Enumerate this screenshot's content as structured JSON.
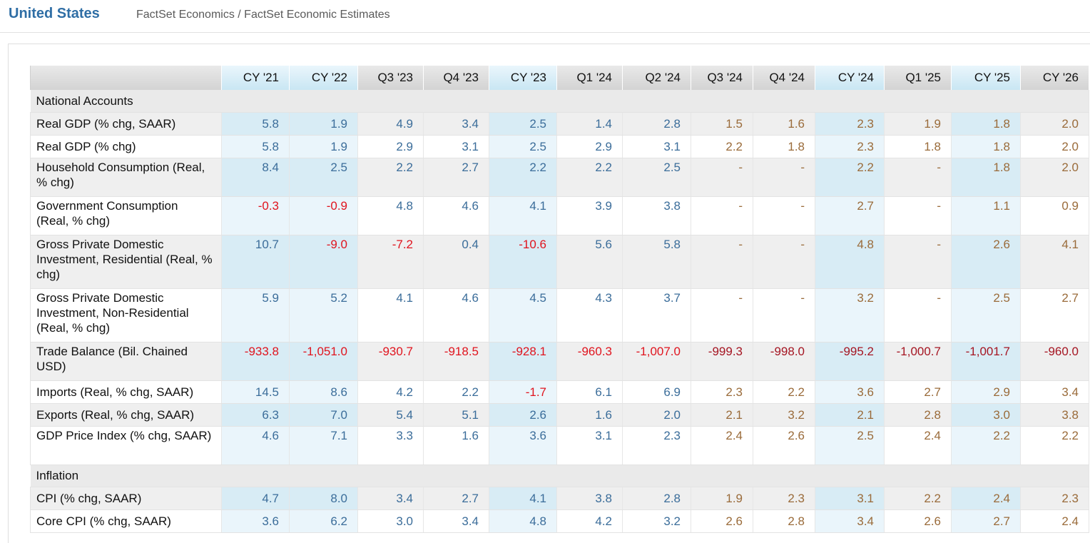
{
  "header": {
    "country": "United States",
    "source": "FactSet Economics / FactSet Economic Estimates"
  },
  "table": {
    "columns": [
      "CY '21",
      "CY '22",
      "Q3 '23",
      "Q4 '23",
      "CY '23",
      "Q1 '24",
      "Q2 '24",
      "Q3 '24",
      "Q4 '24",
      "CY '24",
      "Q1 '25",
      "CY '25",
      "CY '26"
    ],
    "cy_columns": [
      0,
      1,
      4,
      9,
      11
    ],
    "estimate_start_index": 7,
    "sections": [
      {
        "title": "National Accounts",
        "rows": [
          {
            "label": "Real GDP (% chg, SAAR)",
            "values": [
              "5.8",
              "1.9",
              "4.9",
              "3.4",
              "2.5",
              "1.4",
              "2.8",
              "1.5",
              "1.6",
              "2.3",
              "1.9",
              "1.8",
              "2.0"
            ]
          },
          {
            "label": "Real GDP (% chg)",
            "values": [
              "5.8",
              "1.9",
              "2.9",
              "3.1",
              "2.5",
              "2.9",
              "3.1",
              "2.2",
              "1.8",
              "2.3",
              "1.8",
              "1.8",
              "2.0"
            ]
          },
          {
            "label": "Household Consumption (Real, % chg)",
            "values": [
              "8.4",
              "2.5",
              "2.2",
              "2.7",
              "2.2",
              "2.2",
              "2.5",
              "-",
              "-",
              "2.2",
              "-",
              "1.8",
              "2.0"
            ]
          },
          {
            "label": "Government Consumption (Real, % chg)",
            "values": [
              "-0.3",
              "-0.9",
              "4.8",
              "4.6",
              "4.1",
              "3.9",
              "3.8",
              "-",
              "-",
              "2.7",
              "-",
              "1.1",
              "0.9"
            ]
          },
          {
            "label": "Gross Private Domestic Investment, Residential (Real, % chg)",
            "values": [
              "10.7",
              "-9.0",
              "-7.2",
              "0.4",
              "-10.6",
              "5.6",
              "5.8",
              "-",
              "-",
              "4.8",
              "-",
              "2.6",
              "4.1"
            ]
          },
          {
            "label": "Gross Private Domestic Investment, Non-Residential (Real, % chg)",
            "values": [
              "5.9",
              "5.2",
              "4.1",
              "4.6",
              "4.5",
              "4.3",
              "3.7",
              "-",
              "-",
              "3.2",
              "-",
              "2.5",
              "2.7"
            ]
          },
          {
            "label": "Trade Balance (Bil. Chained USD)",
            "values": [
              "-933.8",
              "-1,051.0",
              "-930.7",
              "-918.5",
              "-928.1",
              "-960.3",
              "-1,007.0",
              "-999.3",
              "-998.0",
              "-995.2",
              "-1,000.7",
              "-1,001.7",
              "-960.0"
            ]
          },
          {
            "label": "Imports (Real, % chg, SAAR)",
            "values": [
              "14.5",
              "8.6",
              "4.2",
              "2.2",
              "-1.7",
              "6.1",
              "6.9",
              "2.3",
              "2.2",
              "3.6",
              "2.7",
              "2.9",
              "3.4"
            ]
          },
          {
            "label": "Exports (Real, % chg, SAAR)",
            "values": [
              "6.3",
              "7.0",
              "5.4",
              "5.1",
              "2.6",
              "1.6",
              "2.0",
              "2.1",
              "3.2",
              "2.1",
              "2.8",
              "3.0",
              "3.8"
            ]
          },
          {
            "label": "GDP Price Index (% chg, SAAR)",
            "values": [
              "4.6",
              "7.1",
              "3.3",
              "1.6",
              "3.6",
              "3.1",
              "2.3",
              "2.4",
              "2.6",
              "2.5",
              "2.4",
              "2.2",
              "2.2"
            ]
          }
        ]
      },
      {
        "title": "Inflation",
        "rows": [
          {
            "label": "CPI (% chg, SAAR)",
            "values": [
              "4.7",
              "8.0",
              "3.4",
              "2.7",
              "4.1",
              "3.8",
              "2.8",
              "1.9",
              "2.3",
              "3.1",
              "2.2",
              "2.4",
              "2.3"
            ]
          },
          {
            "label": "Core CPI (% chg, SAAR)",
            "values": [
              "3.6",
              "6.2",
              "3.0",
              "3.4",
              "4.8",
              "4.2",
              "3.2",
              "2.6",
              "2.8",
              "3.4",
              "2.6",
              "2.7",
              "2.4"
            ]
          }
        ]
      }
    ]
  },
  "colors": {
    "title_blue": "#2f6ea5",
    "actual_value": "#3b6d9a",
    "estimate_value": "#9a6b3a",
    "negative_actual": "#e0141e",
    "negative_estimate": "#a51522",
    "cy_column_tint": "#d8ecf5"
  }
}
